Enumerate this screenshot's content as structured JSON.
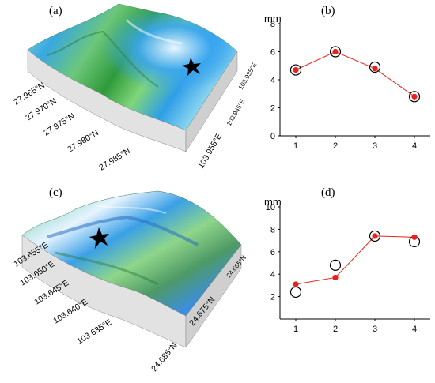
{
  "panels": {
    "a": {
      "letter": "(a)",
      "lat_labels": [
        "27.965°N",
        "27.970°N",
        "27.975°N",
        "27.980°N",
        "27.985°N"
      ],
      "lon_labels": [
        "103.955°E",
        "103.945°E",
        "103.935°E"
      ]
    },
    "b": {
      "letter": "(b)"
    },
    "c": {
      "letter": "(c)",
      "lon_labels": [
        "103.655°E",
        "103.650°E",
        "103.645°E",
        "103.640°E",
        "103.635°E"
      ],
      "lat_labels": [
        "24.685°N",
        "24.675°N",
        "24.665°N"
      ]
    },
    "d": {
      "letter": "(d)"
    }
  },
  "colors": {
    "red": "#e8211c",
    "black": "#000000",
    "line": "#e8211c"
  },
  "chart_data": [
    {
      "type": "scatter",
      "panel": "(b)",
      "ylabel": "mm",
      "x": [
        1,
        2,
        3,
        4
      ],
      "xticks": [
        "1",
        "2",
        "3",
        "4"
      ],
      "yticks": [
        "0",
        "2",
        "4",
        "6",
        "8"
      ],
      "ylim": [
        0,
        8
      ],
      "xlim": [
        0.6,
        4.4
      ],
      "series": [
        {
          "marker": "red-filled-dot-with-line",
          "values": [
            4.7,
            6.0,
            4.8,
            2.8
          ]
        },
        {
          "marker": "open-black-circle",
          "values": [
            4.7,
            6.0,
            4.9,
            2.8
          ]
        }
      ],
      "grid": false
    },
    {
      "type": "scatter",
      "panel": "(d)",
      "ylabel": "mm",
      "x": [
        1,
        2,
        3,
        4
      ],
      "xticks": [
        "1",
        "2",
        "3",
        "4"
      ],
      "yticks": [
        "2",
        "4",
        "6",
        "8",
        "10"
      ],
      "ylim": [
        0,
        10
      ],
      "xlim": [
        0.6,
        4.4
      ],
      "series": [
        {
          "marker": "red-filled-dot-with-line",
          "values": [
            3.1,
            3.7,
            7.4,
            7.3
          ]
        },
        {
          "marker": "open-black-circle",
          "values": [
            2.4,
            4.8,
            7.4,
            6.9
          ]
        }
      ],
      "grid": false
    }
  ]
}
